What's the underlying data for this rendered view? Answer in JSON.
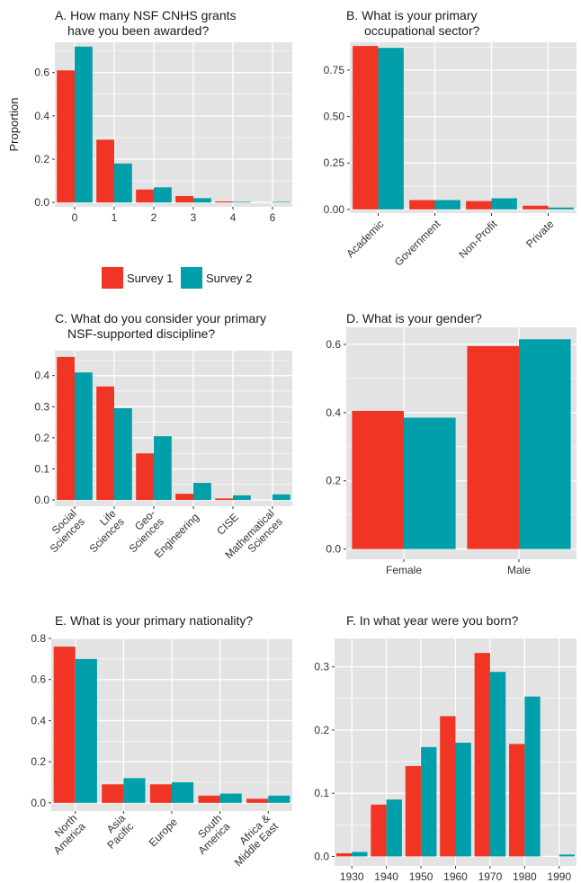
{
  "colors": {
    "survey1": "#F03524",
    "survey2": "#009FAA",
    "panel_bg": "#E3E3E3",
    "grid": "#FFFFFF"
  },
  "legend": {
    "items": [
      {
        "label": "Survey 1",
        "color": "#F03524"
      },
      {
        "label": "Survey 2",
        "color": "#009FAA"
      }
    ]
  },
  "chart_data": [
    {
      "type": "bar",
      "title": [
        "A. How many NSF CNHS grants",
        "have you been awarded?"
      ],
      "ylabel": "Proportion",
      "xlabel": "",
      "ylim": [
        -0.02,
        0.74
      ],
      "yticks": [
        "0.0",
        "0.2",
        "0.4",
        "0.6"
      ],
      "yticks_values": [
        0,
        0.2,
        0.4,
        0.6
      ],
      "categories": [
        "0",
        "1",
        "2",
        "3",
        "4",
        "6"
      ],
      "x_label_rotation": 0,
      "series": [
        {
          "name": "Survey 1",
          "values": [
            0.61,
            0.29,
            0.06,
            0.03,
            0.005,
            0.0
          ]
        },
        {
          "name": "Survey 2",
          "values": [
            0.72,
            0.18,
            0.07,
            0.02,
            0.003,
            0.003
          ]
        }
      ]
    },
    {
      "type": "bar",
      "title": [
        "B. What is your primary",
        "occupational sector?"
      ],
      "ylabel": "",
      "xlabel": "",
      "ylim": [
        -0.02,
        0.9
      ],
      "yticks": [
        "0.00",
        "0.25",
        "0.50",
        "0.75"
      ],
      "yticks_values": [
        0,
        0.25,
        0.5,
        0.75
      ],
      "categories": [
        "Academic",
        "Government",
        "Non-Profit",
        "Private"
      ],
      "x_label_rotation": -45,
      "series": [
        {
          "name": "Survey 1",
          "values": [
            0.88,
            0.05,
            0.045,
            0.02
          ]
        },
        {
          "name": "Survey 2",
          "values": [
            0.87,
            0.05,
            0.06,
            0.01
          ]
        }
      ]
    },
    {
      "type": "bar",
      "title": [
        "C. What do you consider your primary",
        "NSF-supported discipline?"
      ],
      "ylabel": "",
      "xlabel": "",
      "ylim": [
        -0.02,
        0.48
      ],
      "yticks": [
        "0.0",
        "0.1",
        "0.2",
        "0.3",
        "0.4"
      ],
      "yticks_values": [
        0,
        0.1,
        0.2,
        0.3,
        0.4
      ],
      "categories": [
        "Social\nSciences",
        "Life\nSciences",
        "Geo-\nSciences",
        "Engineering",
        "CISE",
        "Mathematical\nSciences"
      ],
      "x_label_rotation": -45,
      "series": [
        {
          "name": "Survey 1",
          "values": [
            0.46,
            0.365,
            0.15,
            0.02,
            0.005,
            0.0
          ]
        },
        {
          "name": "Survey 2",
          "values": [
            0.41,
            0.295,
            0.205,
            0.055,
            0.015,
            0.018
          ]
        }
      ]
    },
    {
      "type": "bar",
      "title": [
        "D. What is your gender?"
      ],
      "ylabel": "",
      "xlabel": "",
      "ylim": [
        -0.03,
        0.65
      ],
      "yticks": [
        "0.0",
        "0.2",
        "0.4",
        "0.6"
      ],
      "yticks_values": [
        0,
        0.2,
        0.4,
        0.6
      ],
      "categories": [
        "Female",
        "Male"
      ],
      "x_label_rotation": 0,
      "series": [
        {
          "name": "Survey 1",
          "values": [
            0.405,
            0.595
          ]
        },
        {
          "name": "Survey 2",
          "values": [
            0.385,
            0.615
          ]
        }
      ]
    },
    {
      "type": "bar",
      "title": [
        "E. What is your primary nationality?"
      ],
      "ylabel": "",
      "xlabel": "",
      "ylim": [
        -0.04,
        0.8
      ],
      "yticks": [
        "0.0",
        "0.2",
        "0.4",
        "0.6",
        "0.8"
      ],
      "yticks_values": [
        0,
        0.2,
        0.4,
        0.6,
        0.8
      ],
      "categories": [
        "North\nAmerica",
        "Asia\nPacific",
        "Europe",
        "South\nAmerica",
        "Africa &\nMiddle East"
      ],
      "x_label_rotation": -45,
      "series": [
        {
          "name": "Survey 1",
          "values": [
            0.76,
            0.09,
            0.09,
            0.035,
            0.02
          ]
        },
        {
          "name": "Survey 2",
          "values": [
            0.7,
            0.12,
            0.1,
            0.045,
            0.035
          ]
        }
      ]
    },
    {
      "type": "bar",
      "title": [
        "F. In what year were you born?"
      ],
      "ylabel": "",
      "xlabel": "",
      "ylim": [
        -0.015,
        0.345
      ],
      "yticks": [
        "0.0",
        "0.1",
        "0.2",
        "0.3"
      ],
      "yticks_values": [
        0,
        0.1,
        0.2,
        0.3
      ],
      "categories": [
        "1930",
        "1940",
        "1950",
        "1960",
        "1970",
        "1980",
        "1990"
      ],
      "x_label_rotation": 0,
      "series": [
        {
          "name": "Survey 1",
          "values": [
            0.005,
            0.082,
            0.143,
            0.222,
            0.322,
            0.178,
            0.0
          ]
        },
        {
          "name": "Survey 2",
          "values": [
            0.007,
            0.09,
            0.173,
            0.18,
            0.292,
            0.253,
            0.003
          ]
        }
      ]
    }
  ]
}
